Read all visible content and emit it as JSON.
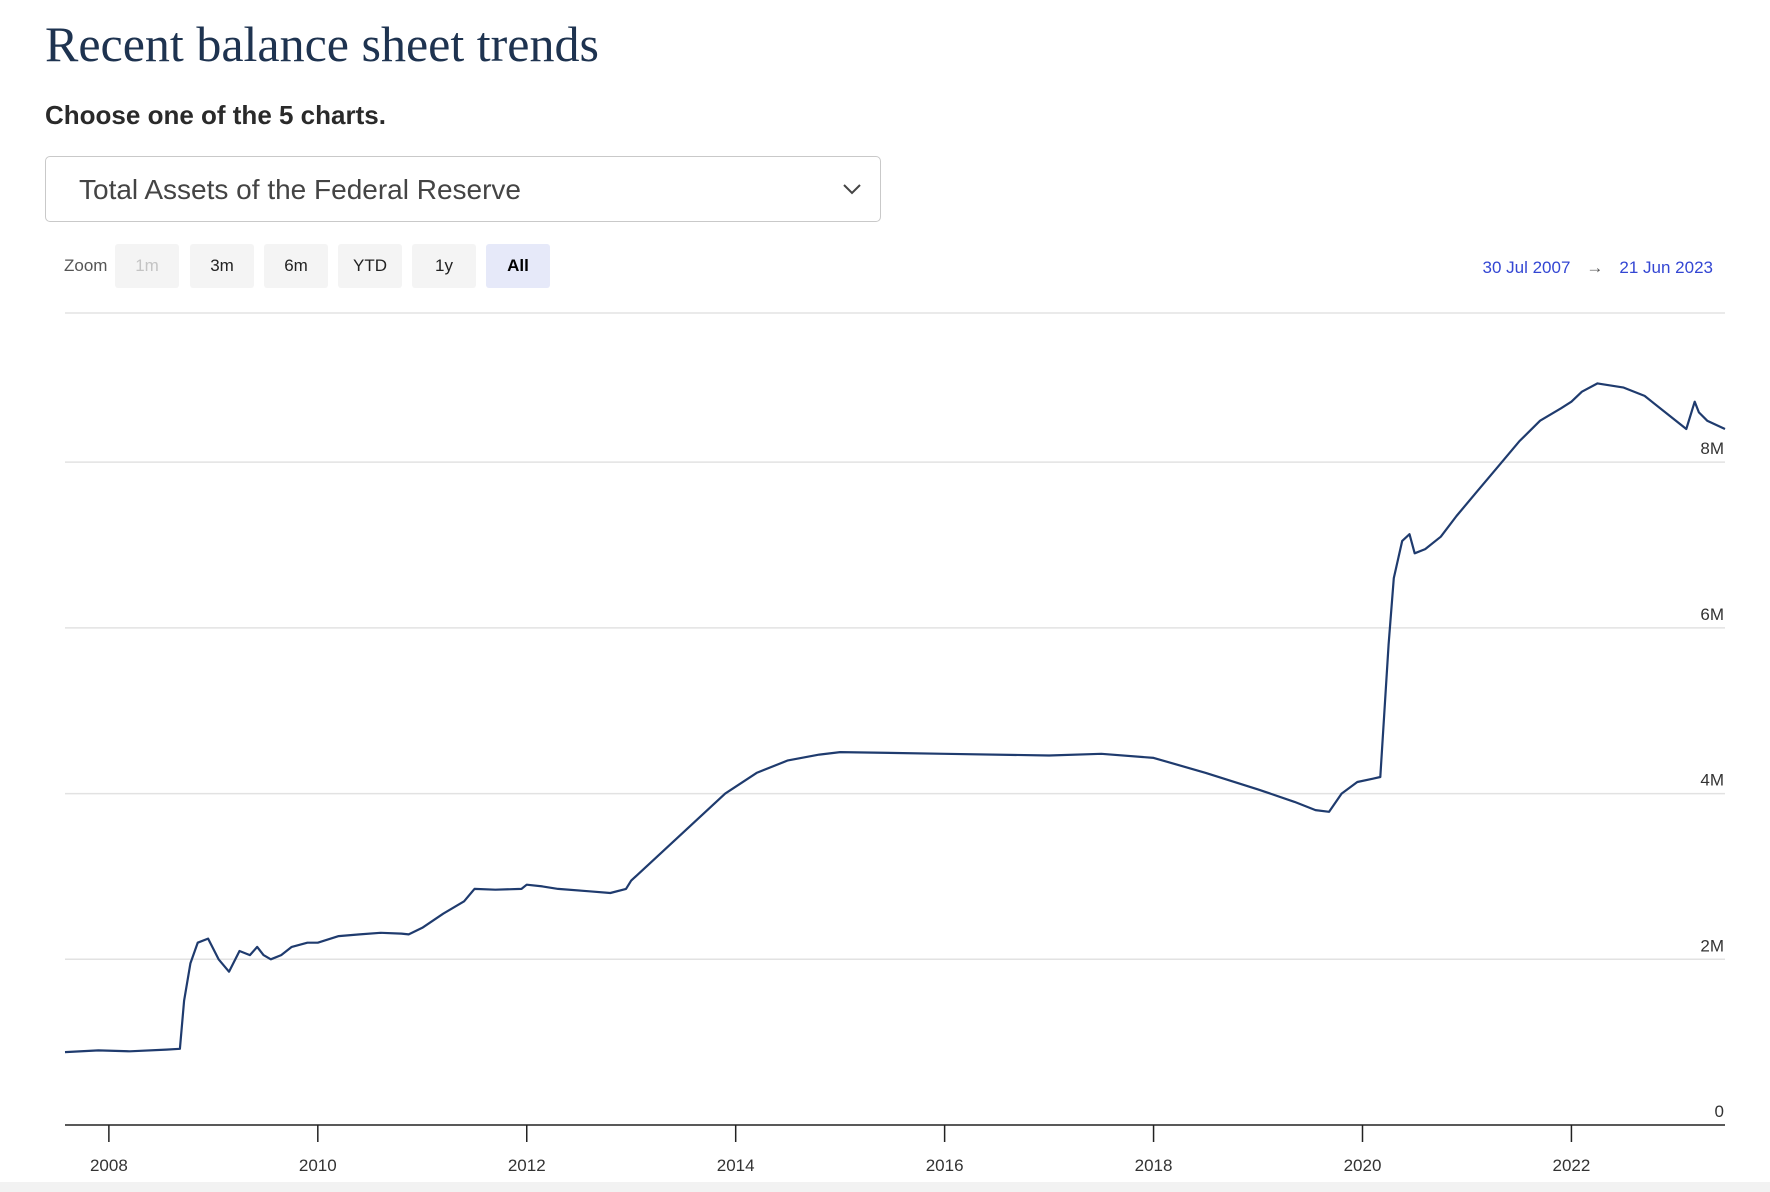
{
  "page": {
    "title": "Recent balance sheet trends",
    "subheading": "Choose one of the 5 charts."
  },
  "selector": {
    "selected": "Total Assets of the Federal Reserve",
    "icon": "chevron-down-icon"
  },
  "zoom": {
    "label": "Zoom",
    "buttons": [
      {
        "label": "1m",
        "state": "disabled"
      },
      {
        "label": "3m",
        "state": "normal"
      },
      {
        "label": "6m",
        "state": "normal"
      },
      {
        "label": "YTD",
        "state": "normal"
      },
      {
        "label": "1y",
        "state": "normal"
      },
      {
        "label": "All",
        "state": "active"
      }
    ]
  },
  "range": {
    "from": "30 Jul 2007",
    "arrow": "→",
    "to": "21 Jun 2023"
  },
  "colors": {
    "series": "#1f3b6e",
    "range_text": "#3346d3",
    "title": "#1e3350"
  },
  "chart_data": {
    "type": "line",
    "x_range": [
      2007.58,
      2023.47
    ],
    "ylim": [
      0,
      9800000
    ],
    "yticks": [
      {
        "value": 0,
        "label": "0"
      },
      {
        "value": 2000000,
        "label": "2M"
      },
      {
        "value": 4000000,
        "label": "4M"
      },
      {
        "value": 6000000,
        "label": "6M"
      },
      {
        "value": 8000000,
        "label": "8M"
      }
    ],
    "xticks": [
      {
        "value": 2008,
        "label": "2008"
      },
      {
        "value": 2010,
        "label": "2010"
      },
      {
        "value": 2012,
        "label": "2012"
      },
      {
        "value": 2014,
        "label": "2014"
      },
      {
        "value": 2016,
        "label": "2016"
      },
      {
        "value": 2018,
        "label": "2018"
      },
      {
        "value": 2020,
        "label": "2020"
      },
      {
        "value": 2022,
        "label": "2022"
      }
    ],
    "grid": true,
    "y_axis_position": "right",
    "series": [
      {
        "x": [
          2007.58,
          2007.9,
          2008.2,
          2008.55,
          2008.68,
          2008.72,
          2008.78,
          2008.85,
          2008.95,
          2009.05,
          2009.15,
          2009.25,
          2009.35,
          2009.42,
          2009.48,
          2009.55,
          2009.65,
          2009.75,
          2009.9,
          2010.0,
          2010.2,
          2010.4,
          2010.6,
          2010.8,
          2010.87,
          2011.0,
          2011.2,
          2011.4,
          2011.5,
          2011.7,
          2011.95,
          2012.0,
          2012.15,
          2012.3,
          2012.6,
          2012.8,
          2012.95,
          2013.0,
          2013.3,
          2013.6,
          2013.9,
          2014.2,
          2014.5,
          2014.8,
          2015.0,
          2016.0,
          2017.0,
          2017.5,
          2018.0,
          2018.5,
          2019.0,
          2019.35,
          2019.55,
          2019.68,
          2019.8,
          2019.95,
          2020.1,
          2020.17,
          2020.25,
          2020.3,
          2020.38,
          2020.45,
          2020.5,
          2020.6,
          2020.75,
          2020.9,
          2021.1,
          2021.3,
          2021.5,
          2021.7,
          2021.9,
          2022.0,
          2022.1,
          2022.25,
          2022.5,
          2022.7,
          2022.95,
          2023.1,
          2023.18,
          2023.22,
          2023.3,
          2023.47
        ],
        "values": [
          880000,
          900000,
          890000,
          910000,
          920000,
          1500000,
          1950000,
          2200000,
          2250000,
          2000000,
          1850000,
          2100000,
          2050000,
          2150000,
          2050000,
          2000000,
          2050000,
          2150000,
          2200000,
          2200000,
          2280000,
          2300000,
          2320000,
          2310000,
          2300000,
          2380000,
          2550000,
          2700000,
          2850000,
          2840000,
          2850000,
          2900000,
          2880000,
          2850000,
          2820000,
          2800000,
          2850000,
          2950000,
          3300000,
          3650000,
          4000000,
          4250000,
          4400000,
          4470000,
          4500000,
          4480000,
          4460000,
          4480000,
          4430000,
          4250000,
          4050000,
          3900000,
          3800000,
          3780000,
          4000000,
          4140000,
          4180000,
          4200000,
          5800000,
          6600000,
          7050000,
          7130000,
          6900000,
          6950000,
          7100000,
          7350000,
          7650000,
          7950000,
          8250000,
          8500000,
          8650000,
          8730000,
          8850000,
          8950000,
          8900000,
          8800000,
          8550000,
          8400000,
          8730000,
          8600000,
          8500000,
          8400000
        ]
      }
    ]
  }
}
